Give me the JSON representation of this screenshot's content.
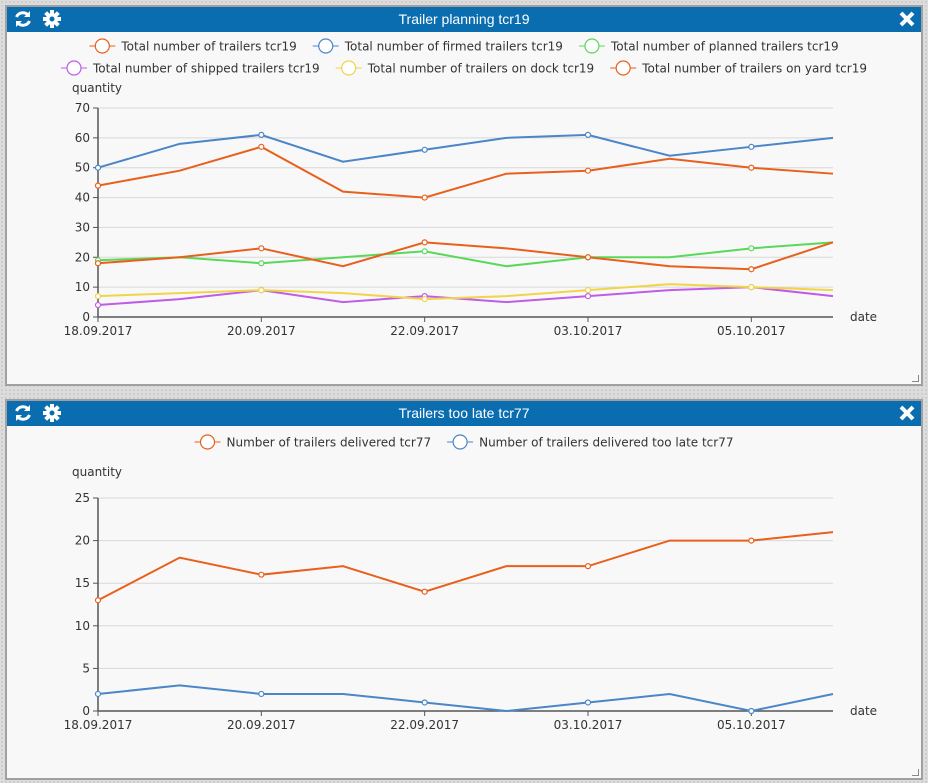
{
  "charts_meta": {
    "refresh_icon": "refresh-icon",
    "settings_icon": "gear-icon",
    "close_icon": "close-icon"
  },
  "chart_data": [
    {
      "type": "line",
      "title": "Trailer planning tcr19",
      "ylabel": "quantity",
      "xlabel": "date",
      "ylim": [
        0,
        70
      ],
      "yticks": [
        0,
        10,
        20,
        30,
        40,
        50,
        60,
        70
      ],
      "grid": true,
      "legend_placement": "top",
      "categories": [
        "18.09.2017",
        "",
        "20.09.2017",
        "",
        "22.09.2017",
        "",
        "03.10.2017",
        "",
        "05.10.2017",
        ""
      ],
      "series": [
        {
          "name": "Total number of trailers tcr19",
          "color": "#e8601c",
          "values": [
            44,
            49,
            57,
            42,
            40,
            48,
            49,
            53,
            50,
            48
          ]
        },
        {
          "name": "Total number of firmed trailers tcr19",
          "color": "#4a86c8",
          "values": [
            50,
            58,
            61,
            52,
            56,
            60,
            61,
            54,
            57,
            60
          ]
        },
        {
          "name": "Total number of planned trailers tcr19",
          "color": "#5ad85a",
          "values": [
            19,
            20,
            18,
            20,
            22,
            17,
            20,
            20,
            23,
            25
          ]
        },
        {
          "name": "Total number of shipped trailers tcr19",
          "color": "#c05ce6",
          "values": [
            4,
            6,
            9,
            5,
            7,
            5,
            7,
            9,
            10,
            7
          ]
        },
        {
          "name": "Total number of trailers on dock tcr19",
          "color": "#f0d44a",
          "values": [
            7,
            8,
            9,
            8,
            6,
            7,
            9,
            11,
            10,
            9
          ]
        },
        {
          "name": "Total number of trailers on yard tcr19",
          "color": "#e8601c",
          "values": [
            18,
            20,
            23,
            17,
            25,
            23,
            20,
            17,
            16,
            25
          ]
        }
      ]
    },
    {
      "type": "line",
      "title": "Trailers too late tcr77",
      "ylabel": "quantity",
      "xlabel": "date",
      "ylim": [
        0,
        25
      ],
      "yticks": [
        0,
        5,
        10,
        15,
        20,
        25
      ],
      "grid": true,
      "legend_placement": "top",
      "categories": [
        "18.09.2017",
        "",
        "20.09.2017",
        "",
        "22.09.2017",
        "",
        "03.10.2017",
        "",
        "05.10.2017",
        ""
      ],
      "series": [
        {
          "name": "Number of trailers delivered tcr77",
          "color": "#e8601c",
          "values": [
            13,
            18,
            16,
            17,
            14,
            17,
            17,
            20,
            20,
            21
          ]
        },
        {
          "name": "Number of trailers delivered too late tcr77",
          "color": "#4a86c8",
          "values": [
            2,
            3,
            2,
            2,
            1,
            0,
            1,
            2,
            0,
            2
          ]
        }
      ]
    }
  ]
}
